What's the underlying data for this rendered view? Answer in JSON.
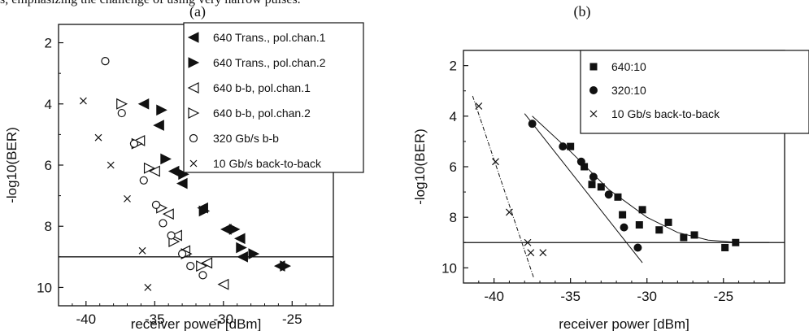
{
  "caption_fragment": "s, emphasizing the challenge of using very narrow pulses.",
  "chart_data": [
    {
      "panel_label": "(a)",
      "type": "scatter",
      "xlabel": "receiver power [dBm]",
      "ylabel": "-log10(BER)",
      "xlim": [
        -42,
        -22
      ],
      "ylim": [
        10.6,
        1.4
      ],
      "xticks": [
        -40,
        -35,
        -30,
        -25
      ],
      "yticks": [
        2,
        4,
        6,
        8,
        10
      ],
      "reference_line_y": 9,
      "legend": "top-right",
      "series": [
        {
          "name": "640 Trans., pol.chan.1",
          "marker": "filled-left-triangle",
          "x": [
            -35.8,
            -34.7,
            -33.6,
            -33.0,
            -31.5,
            -29.8,
            -28.8,
            -28.6,
            -25.9
          ],
          "y": [
            4.0,
            4.7,
            6.2,
            6.6,
            7.4,
            8.1,
            8.4,
            9.0,
            9.3
          ]
        },
        {
          "name": "640 Trans., pol.chan.2",
          "marker": "filled-right-triangle",
          "x": [
            -34.5,
            -34.2,
            -32.9,
            -31.4,
            -29.2,
            -28.7,
            -27.8,
            -25.5
          ],
          "y": [
            4.2,
            5.8,
            6.3,
            7.5,
            8.1,
            8.7,
            8.9,
            9.3
          ]
        },
        {
          "name": "640 b-b, pol.chan.1",
          "marker": "open-left-triangle",
          "x": [
            -36.1,
            -35.0,
            -34.0,
            -33.4,
            -32.8,
            -31.2,
            -30.0
          ],
          "y": [
            5.2,
            6.2,
            7.6,
            8.3,
            8.8,
            9.2,
            9.9
          ]
        },
        {
          "name": "640 b-b, pol.chan.2",
          "marker": "open-right-triangle",
          "x": [
            -37.4,
            -36.3,
            -35.4,
            -34.5,
            -33.6,
            -32.7,
            -31.6
          ],
          "y": [
            4.0,
            5.3,
            6.1,
            7.4,
            8.5,
            8.9,
            9.3
          ]
        },
        {
          "name": "320 Gb/s b-b",
          "marker": "open-circle",
          "x": [
            -38.6,
            -37.4,
            -36.5,
            -35.8,
            -34.9,
            -34.4,
            -33.8,
            -33.0,
            -32.4,
            -31.5
          ],
          "y": [
            2.6,
            4.3,
            5.3,
            6.5,
            7.3,
            7.9,
            8.3,
            8.9,
            9.3,
            9.6
          ]
        },
        {
          "name": "10 Gb/s back-to-back",
          "marker": "x",
          "x": [
            -40.2,
            -39.1,
            -38.2,
            -37.0,
            -35.9,
            -35.5
          ],
          "y": [
            3.9,
            5.1,
            6.0,
            7.1,
            8.8,
            10.0
          ]
        }
      ]
    },
    {
      "panel_label": "(b)",
      "type": "scatter",
      "xlabel": "receiver power [dBm]",
      "ylabel": "-log10(BER)",
      "xlim": [
        -42,
        -21
      ],
      "ylim": [
        10.6,
        1.4
      ],
      "xticks": [
        -40,
        -35,
        -30,
        -25
      ],
      "yticks": [
        2,
        4,
        6,
        8,
        10
      ],
      "reference_line_y": 9,
      "legend": "top-right",
      "series": [
        {
          "name": "640:10",
          "marker": "filled-square",
          "x": [
            -35.0,
            -34.1,
            -33.6,
            -33.0,
            -31.9,
            -31.6,
            -30.5,
            -30.3,
            -29.2,
            -28.6,
            -27.6,
            -26.9,
            -24.9,
            -24.2
          ],
          "y": [
            5.2,
            6.0,
            6.7,
            6.8,
            7.2,
            7.9,
            8.3,
            7.7,
            8.5,
            8.2,
            8.8,
            8.7,
            9.2,
            9.0
          ]
        },
        {
          "name": "320:10",
          "marker": "filled-circle",
          "x": [
            -37.5,
            -35.5,
            -34.3,
            -33.5,
            -32.5,
            -31.5,
            -30.6
          ],
          "y": [
            4.3,
            5.2,
            5.8,
            6.4,
            7.1,
            8.4,
            9.2
          ]
        },
        {
          "name": "10 Gb/s back-to-back",
          "marker": "x",
          "x": [
            -41.0,
            -39.9,
            -39.0,
            -37.8,
            -37.6,
            -36.8
          ],
          "y": [
            3.6,
            5.8,
            7.8,
            9.0,
            9.4,
            9.4
          ]
        }
      ],
      "fit_curves": [
        {
          "for": "640:10",
          "style": "solid",
          "x": [
            -37.5,
            -35,
            -32.5,
            -30,
            -28,
            -26,
            -24,
            -22
          ],
          "y": [
            4.0,
            5.4,
            6.9,
            8.0,
            8.6,
            8.9,
            9.0,
            9.0
          ]
        },
        {
          "for": "320:10",
          "style": "solid",
          "x": [
            -38.0,
            -30.3
          ],
          "y": [
            3.9,
            9.8
          ]
        },
        {
          "for": "10 Gb/s back-to-back",
          "style": "dashed",
          "x": [
            -41.4,
            -37.4
          ],
          "y": [
            3.2,
            10.4
          ]
        }
      ]
    }
  ]
}
